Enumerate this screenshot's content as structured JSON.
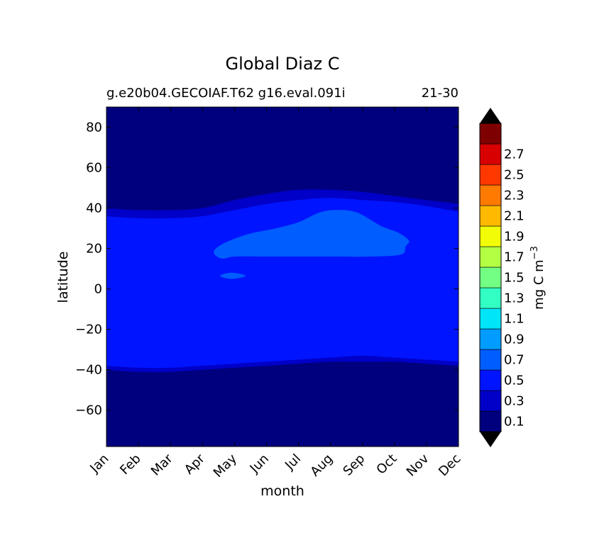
{
  "chart_data": {
    "type": "contourf",
    "title": "Global Diaz C",
    "subtitle_left": "g.e20b04.GECOIAF.T62 g16.eval.091i",
    "subtitle_right": "21-30",
    "xlabel": "month",
    "ylabel": "latitude",
    "x_tick_labels": [
      "Jan",
      "Feb",
      "Mar",
      "Apr",
      "May",
      "Jun",
      "Jul",
      "Aug",
      "Sep",
      "Oct",
      "Nov",
      "Dec"
    ],
    "y_ticks": [
      80,
      60,
      40,
      20,
      0,
      -20,
      -40,
      -60
    ],
    "y_tick_labels": [
      "80",
      "60",
      "40",
      "20",
      "0",
      "−20",
      "−40",
      "−60"
    ],
    "xlim": [
      1,
      12
    ],
    "ylim": [
      -78,
      90
    ],
    "colorbar": {
      "label_base": "mg C m",
      "label_exp": "−3",
      "extend": "both",
      "tick_labels": [
        "0.1",
        "0.3",
        "0.5",
        "0.7",
        "0.9",
        "1.1",
        "1.3",
        "1.5",
        "1.7",
        "1.9",
        "2.1",
        "2.3",
        "2.5",
        "2.7"
      ],
      "colors": [
        "#00007f",
        "#0000c8",
        "#0014ff",
        "#005dff",
        "#009cff",
        "#00e5f8",
        "#33ffc3",
        "#73ff83",
        "#b3ff43",
        "#f1fc06",
        "#ffba00",
        "#ff7a00",
        "#ff3800",
        "#d80000",
        "#7f0000"
      ],
      "under_color": "#000000",
      "over_color": "#000000"
    },
    "regions": [
      {
        "level": "0.1-0.3",
        "color": "#0000c8",
        "upper_boundary_lat": [
          40,
          39,
          39,
          40,
          44,
          47,
          49,
          49,
          48,
          46,
          44,
          42
        ],
        "lower_boundary_lat": [
          -40,
          -41,
          -41,
          -40,
          -39,
          -38,
          -37,
          -36,
          -36,
          -36,
          -37,
          -38
        ]
      },
      {
        "level": "0.3-0.5",
        "color": "#0014ff",
        "upper_boundary_lat": [
          36,
          35,
          35,
          36,
          39,
          42,
          44,
          45,
          44,
          43,
          41,
          38
        ],
        "lower_boundary_lat": [
          -38,
          -39,
          -39,
          -38,
          -37,
          -36,
          -35,
          -34,
          -33,
          -34,
          -35,
          -36
        ]
      },
      {
        "level": "0.5-0.7",
        "color": "#005dff",
        "polygon_month_lat": [
          [
            4.35,
            18
          ],
          [
            4.6,
            22
          ],
          [
            5.4,
            27
          ],
          [
            6.3,
            30
          ],
          [
            7.0,
            33
          ],
          [
            7.6,
            37.5
          ],
          [
            8.1,
            39
          ],
          [
            8.8,
            38
          ],
          [
            9.6,
            31
          ],
          [
            10.1,
            28
          ],
          [
            10.45,
            24
          ],
          [
            10.35,
            21
          ],
          [
            10.2,
            17
          ],
          [
            9.2,
            16
          ],
          [
            8.0,
            16
          ],
          [
            6.0,
            16
          ],
          [
            5.0,
            16
          ],
          [
            4.6,
            15
          ]
        ]
      },
      {
        "level": "0.5-0.7",
        "color": "#005dff",
        "polygon_month_lat": [
          [
            4.55,
            6.5
          ],
          [
            4.9,
            8
          ],
          [
            5.35,
            6.5
          ],
          [
            4.9,
            5
          ]
        ]
      }
    ],
    "grid": false
  }
}
